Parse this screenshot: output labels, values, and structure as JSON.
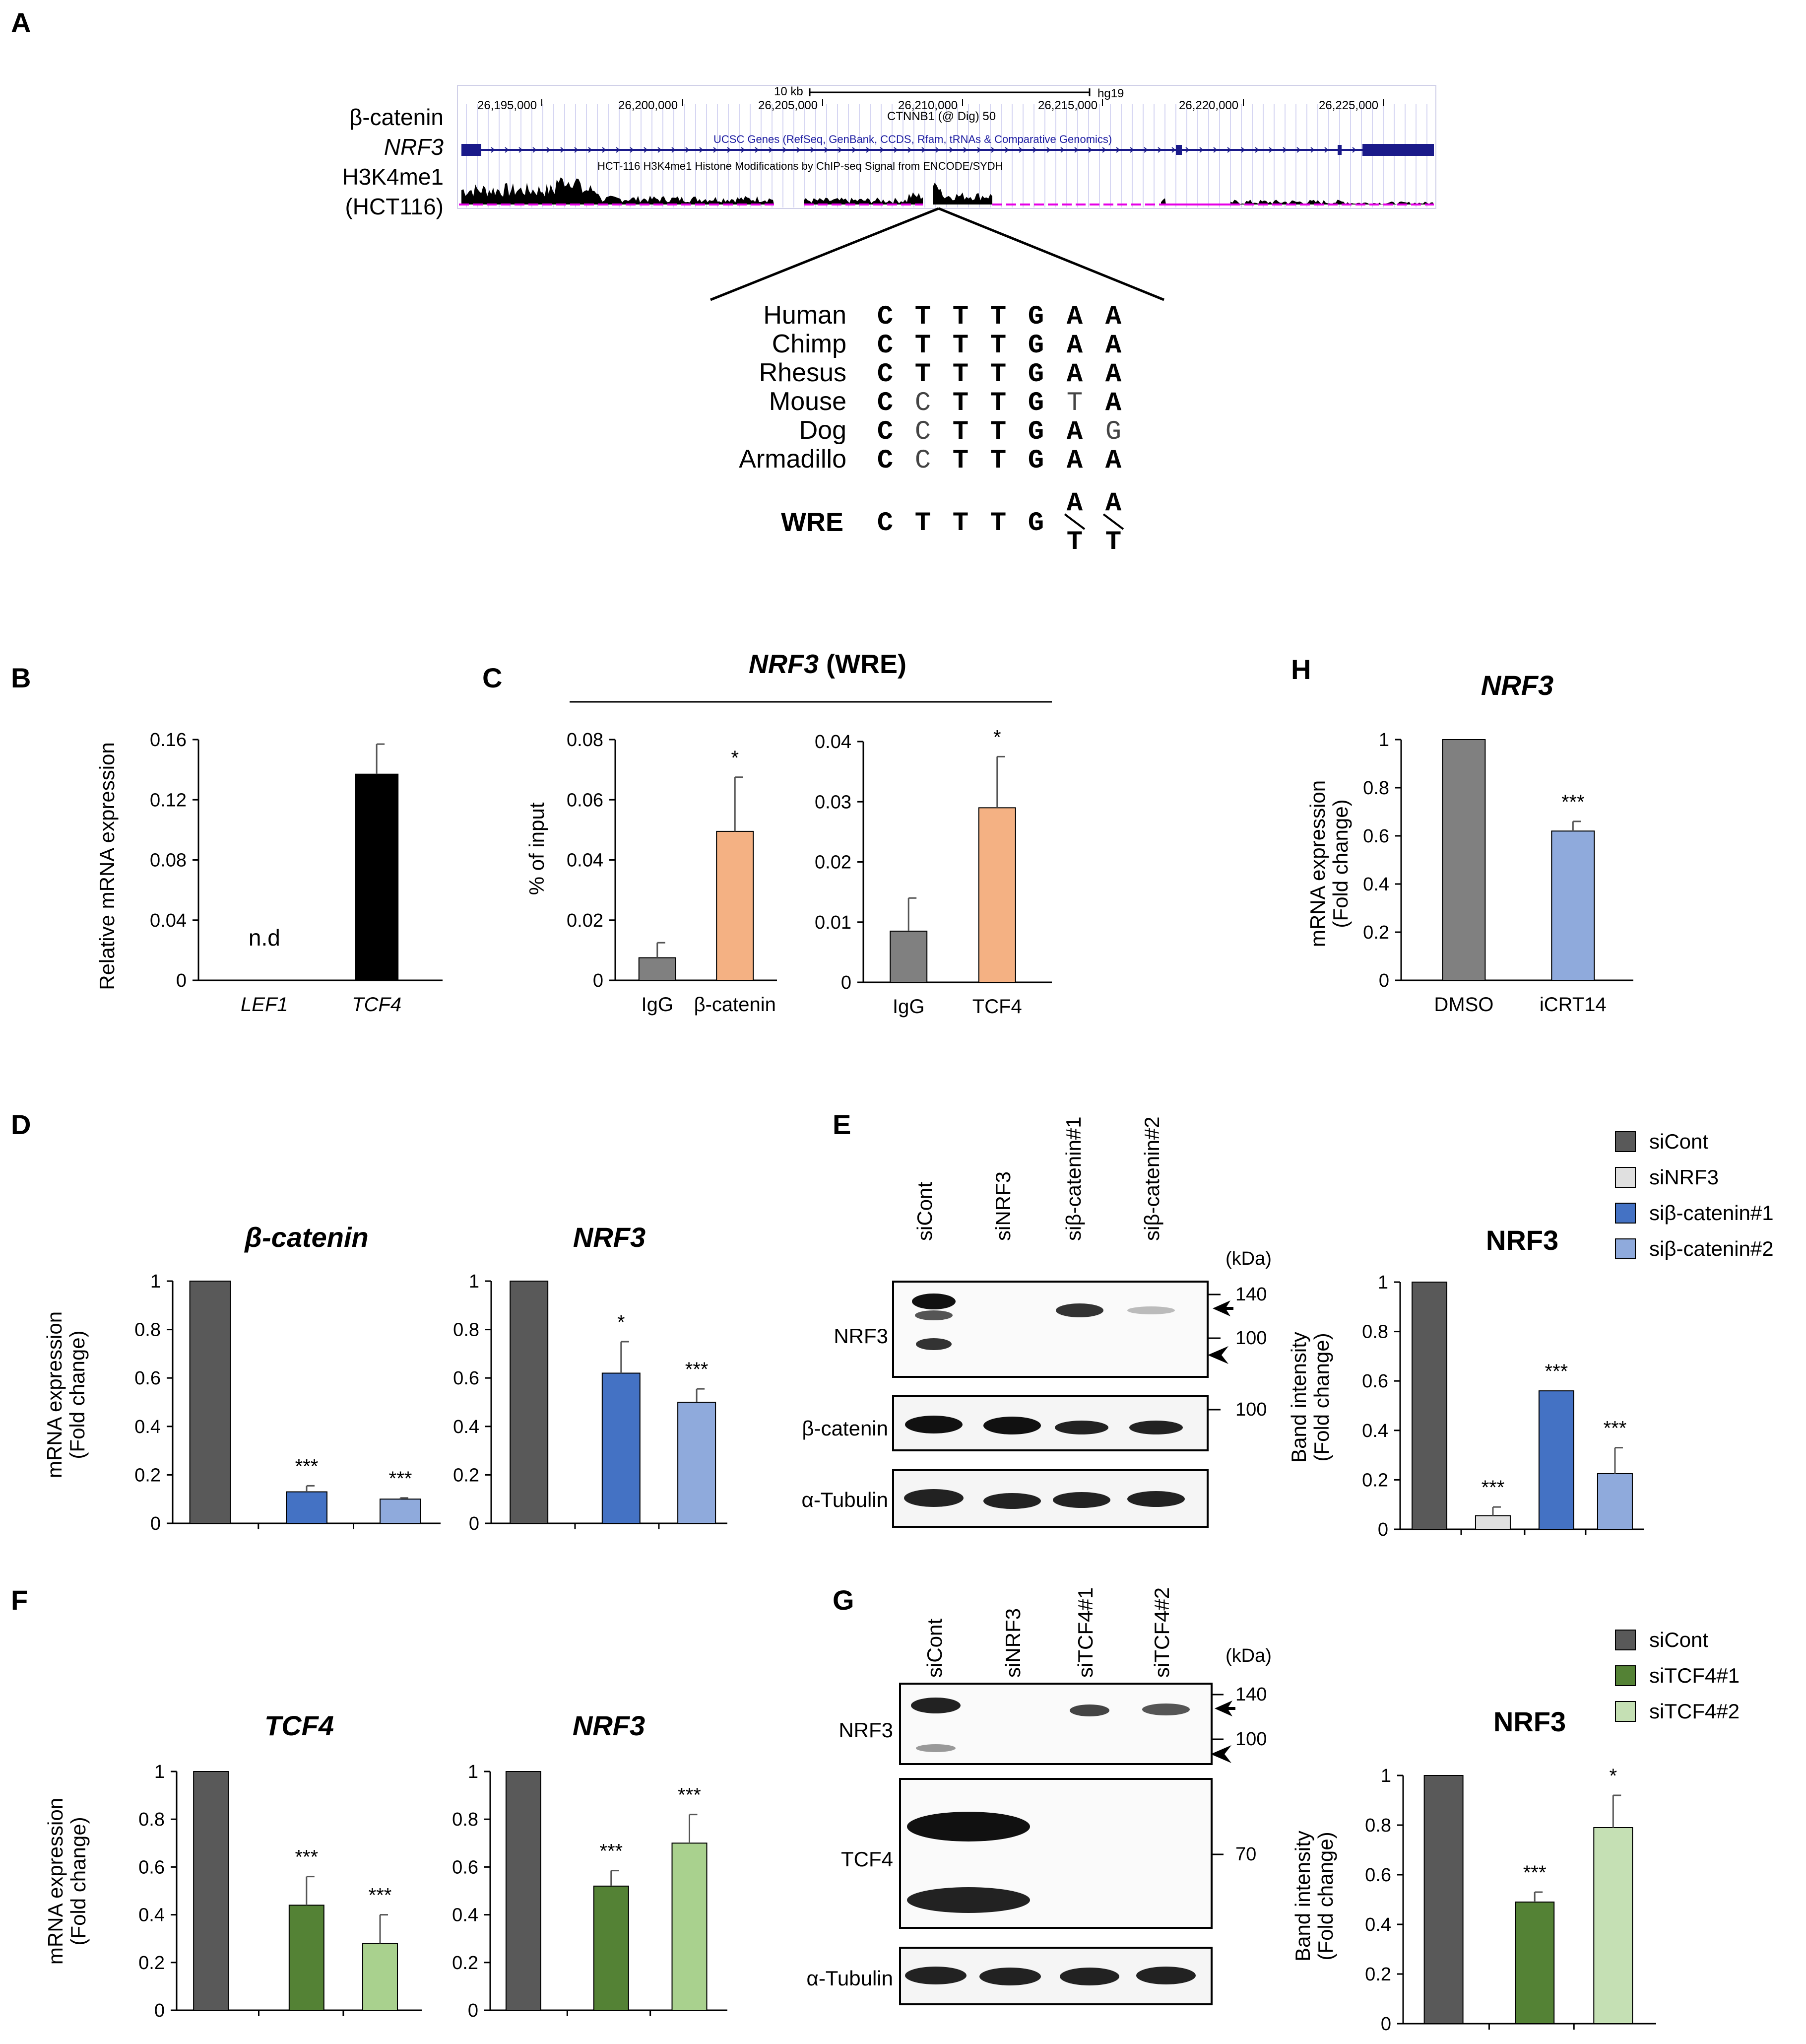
{
  "panels": {
    "A": {
      "letter": "A",
      "track_labels": [
        "β-catenin",
        "NRF3",
        "H3K4me1",
        "(HCT116)"
      ],
      "scale_label": "10 kb",
      "genome": "hg19",
      "coords": [
        "26,195,000",
        "26,200,000",
        "26,205,000",
        "26,210,000",
        "26,215,000",
        "26,220,000",
        "26,225,000"
      ],
      "ctnnb1_label": "CTNNB1 (@ Dig) 50",
      "ucsc_label": "UCSC Genes (RefSeq, GenBank, CCDS, Rfam, tRNAs & Comparative Genomics)",
      "chip_label": "HCT-116 H3K4me1 Histone Modifications by ChIP-seq Signal from ENCODE/SYDH",
      "species": [
        {
          "name": "Human",
          "seq": [
            "C",
            "T",
            "T",
            "T",
            "G",
            "A",
            "A"
          ]
        },
        {
          "name": "Chimp",
          "seq": [
            "C",
            "T",
            "T",
            "T",
            "G",
            "A",
            "A"
          ]
        },
        {
          "name": "Rhesus",
          "seq": [
            "C",
            "T",
            "T",
            "T",
            "G",
            "A",
            "A"
          ]
        },
        {
          "name": "Mouse",
          "seq": [
            "C",
            "C",
            "T",
            "T",
            "G",
            "T",
            "A"
          ]
        },
        {
          "name": "Dog",
          "seq": [
            "C",
            "C",
            "T",
            "T",
            "G",
            "A",
            "G"
          ]
        },
        {
          "name": "Armadillo",
          "seq": [
            "C",
            "C",
            "T",
            "T",
            "G",
            "A",
            "A"
          ]
        }
      ],
      "wre_label": "WRE",
      "wre_seq": [
        "C",
        "T",
        "T",
        "T",
        "G"
      ],
      "wre_alt": [
        {
          "top": "A",
          "bottom": "T"
        },
        {
          "top": "A",
          "bottom": "T"
        }
      ]
    },
    "B": {
      "letter": "B"
    },
    "C": {
      "letter": "C",
      "header": "NRF3",
      "header_suffix": " (WRE)"
    },
    "D": {
      "letter": "D"
    },
    "E": {
      "letter": "E",
      "lanes": [
        "siCont",
        "siNRF3",
        "siβ-catenin#1",
        "siβ-catenin#2"
      ],
      "kda": "(kDa)",
      "blots": [
        "NRF3",
        "β-catenin",
        "α-Tubulin"
      ],
      "markers": [
        "140",
        "100",
        "100"
      ]
    },
    "F": {
      "letter": "F"
    },
    "G": {
      "letter": "G",
      "lanes": [
        "siCont",
        "siNRF3",
        "siTCF4#1",
        "siTCF4#2"
      ],
      "kda": "(kDa)",
      "blots": [
        "NRF3",
        "TCF4",
        "α-Tubulin"
      ],
      "markers": [
        "140",
        "100",
        "70"
      ]
    },
    "H": {
      "letter": "H"
    }
  },
  "legends": {
    "E": [
      {
        "label": "siCont",
        "color": "#595959"
      },
      {
        "label": "siNRF3",
        "color": "#e0e0e0"
      },
      {
        "label": "siβ-catenin#1",
        "color": "#4472c4"
      },
      {
        "label": "siβ-catenin#2",
        "color": "#8faadc"
      }
    ],
    "G": [
      {
        "label": "siCont",
        "color": "#595959"
      },
      {
        "label": "siTCF4#1",
        "color": "#548235"
      },
      {
        "label": "siTCF4#2",
        "color": "#c5e0b4"
      }
    ]
  },
  "chart_data": [
    {
      "id": "B",
      "type": "bar",
      "title": "",
      "ylabel": "Relative mRNA expression",
      "categories": [
        "LEF1",
        "TCF4"
      ],
      "values": [
        0,
        0.137
      ],
      "errors": [
        0,
        0.02
      ],
      "bar_colors": [
        "#000000",
        "#000000"
      ],
      "annotations": [
        "n.d",
        ""
      ],
      "ylim": [
        0,
        0.16
      ],
      "ticks": [
        "0",
        "0.04",
        "0.08",
        "0.12",
        "0.16"
      ]
    },
    {
      "id": "C1",
      "type": "bar",
      "title": "",
      "ylabel": "% of input",
      "categories": [
        "IgG",
        "β-catenin"
      ],
      "values": [
        0.0075,
        0.0495
      ],
      "errors": [
        0.005,
        0.018
      ],
      "bar_colors": [
        "#808080",
        "#f4b183"
      ],
      "annotations": [
        "",
        "*"
      ],
      "ylim": [
        0,
        0.08
      ],
      "ticks": [
        "0",
        "0.02",
        "0.04",
        "0.06",
        "0.08"
      ]
    },
    {
      "id": "C2",
      "type": "bar",
      "title": "",
      "ylabel": "",
      "categories": [
        "IgG",
        "TCF4"
      ],
      "values": [
        0.0085,
        0.029
      ],
      "errors": [
        0.0055,
        0.0085
      ],
      "bar_colors": [
        "#808080",
        "#f4b183"
      ],
      "annotations": [
        "",
        "*"
      ],
      "ylim": [
        0,
        0.04
      ],
      "ticks": [
        "0",
        "0.01",
        "0.02",
        "0.03",
        "0.04"
      ]
    },
    {
      "id": "H",
      "type": "bar",
      "title": "NRF3",
      "ylabel": "mRNA expression",
      "ylabel2": "(Fold change)",
      "categories": [
        "DMSO",
        "iCRT14"
      ],
      "values": [
        1,
        0.62
      ],
      "errors": [
        0,
        0.04
      ],
      "bar_colors": [
        "#808080",
        "#8faadc"
      ],
      "annotations": [
        "",
        "***"
      ],
      "ylim": [
        0,
        1
      ],
      "ticks": [
        "0",
        "0.2",
        "0.4",
        "0.6",
        "0.8",
        "1"
      ]
    },
    {
      "id": "D1",
      "type": "bar",
      "title": "β-catenin",
      "ylabel": "mRNA expression",
      "ylabel2": "(Fold change)",
      "categories": [
        "siCont",
        "siβ-catenin#1",
        "siβ-catenin#2"
      ],
      "values": [
        1,
        0.13,
        0.1
      ],
      "errors": [
        0,
        0.025,
        0.005
      ],
      "bar_colors": [
        "#595959",
        "#4472c4",
        "#8faadc"
      ],
      "annotations": [
        "",
        "***",
        "***"
      ],
      "ylim": [
        0,
        1
      ],
      "ticks": [
        "0",
        "0.2",
        "0.4",
        "0.6",
        "0.8",
        "1"
      ]
    },
    {
      "id": "D2",
      "type": "bar",
      "title": "NRF3",
      "ylabel": "",
      "categories": [
        "siCont",
        "siβ-catenin#1",
        "siβ-catenin#2"
      ],
      "values": [
        1,
        0.62,
        0.5
      ],
      "errors": [
        0,
        0.13,
        0.055
      ],
      "bar_colors": [
        "#595959",
        "#4472c4",
        "#8faadc"
      ],
      "annotations": [
        "",
        "*",
        "***"
      ],
      "ylim": [
        0,
        1
      ],
      "ticks": [
        "0",
        "0.2",
        "0.4",
        "0.6",
        "0.8",
        "1"
      ]
    },
    {
      "id": "E",
      "type": "bar",
      "title": "NRF3",
      "ylabel": "Band intensity",
      "ylabel2": "(Fold change)",
      "categories": [
        "siCont",
        "siNRF3",
        "siβ-catenin#1",
        "siβ-catenin#2"
      ],
      "values": [
        1,
        0.055,
        0.56,
        0.225
      ],
      "errors": [
        0,
        0.035,
        0,
        0.105
      ],
      "bar_colors": [
        "#595959",
        "#e0e0e0",
        "#4472c4",
        "#8faadc"
      ],
      "annotations": [
        "",
        "***",
        "***",
        "***"
      ],
      "ylim": [
        0,
        1
      ],
      "ticks": [
        "0",
        "0.2",
        "0.4",
        "0.6",
        "0.8",
        "1"
      ]
    },
    {
      "id": "F1",
      "type": "bar",
      "title": "TCF4",
      "ylabel": "mRNA expression",
      "ylabel2": "(Fold change)",
      "categories": [
        "siCont",
        "siTCF4#1",
        "siTCF4#2"
      ],
      "values": [
        1,
        0.44,
        0.28
      ],
      "errors": [
        0,
        0.12,
        0.12
      ],
      "bar_colors": [
        "#595959",
        "#548235",
        "#a9d18e"
      ],
      "annotations": [
        "",
        "***",
        "***"
      ],
      "ylim": [
        0,
        1
      ],
      "ticks": [
        "0",
        "0.2",
        "0.4",
        "0.6",
        "0.8",
        "1"
      ]
    },
    {
      "id": "F2",
      "type": "bar",
      "title": "NRF3",
      "ylabel": "",
      "categories": [
        "siCont",
        "siTCF4#1",
        "siTCF4#2"
      ],
      "values": [
        1,
        0.52,
        0.7
      ],
      "errors": [
        0,
        0.065,
        0.12
      ],
      "bar_colors": [
        "#595959",
        "#548235",
        "#a9d18e"
      ],
      "annotations": [
        "",
        "***",
        "***"
      ],
      "ylim": [
        0,
        1
      ],
      "ticks": [
        "0",
        "0.2",
        "0.4",
        "0.6",
        "0.8",
        "1"
      ]
    },
    {
      "id": "G",
      "type": "bar",
      "title": "NRF3",
      "ylabel": "Band intensity",
      "ylabel2": "(Fold change)",
      "categories": [
        "siCont",
        "siTCF4#1",
        "siTCF4#2"
      ],
      "values": [
        1,
        0.49,
        0.79
      ],
      "errors": [
        0,
        0.04,
        0.13
      ],
      "bar_colors": [
        "#595959",
        "#548235",
        "#c5e0b4"
      ],
      "annotations": [
        "",
        "***",
        "*"
      ],
      "ylim": [
        0,
        1
      ],
      "ticks": [
        "0",
        "0.2",
        "0.4",
        "0.6",
        "0.8",
        "1"
      ]
    }
  ]
}
